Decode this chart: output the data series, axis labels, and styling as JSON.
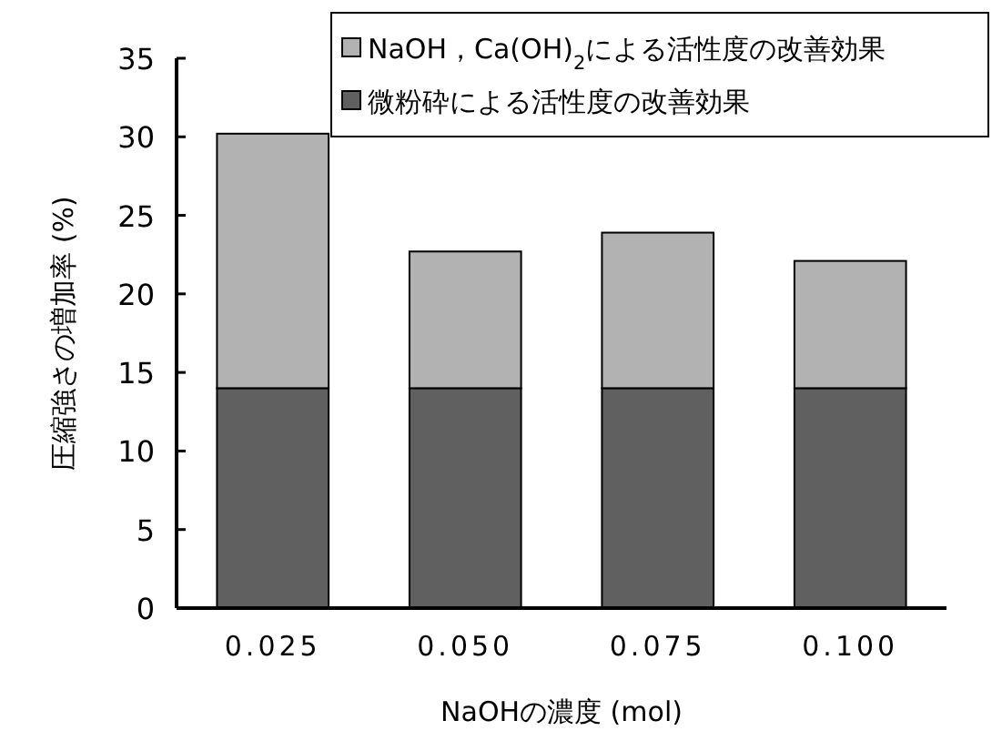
{
  "chart_data": {
    "type": "bar",
    "stacked": true,
    "xlabel": "NaOHの濃度 (mol)",
    "ylabel": "圧縮強さの増加率 (%)",
    "categories": [
      "0.025",
      "0.050",
      "0.075",
      "0.100"
    ],
    "series": [
      {
        "name": "微粉砕による活性度の改善効果",
        "color": "#606060",
        "values": [
          14.0,
          14.0,
          14.0,
          14.0
        ]
      },
      {
        "name": "NaOH，Ca(OH)$_{2}$による活性度の改善効果",
        "color": "#b2b2b2",
        "values": [
          16.2,
          8.7,
          9.9,
          8.1
        ]
      }
    ],
    "ylim": [
      0,
      35
    ],
    "yticks": [
      0,
      5,
      10,
      15,
      20,
      25,
      30,
      35
    ],
    "grid": false,
    "legend": "top right"
  }
}
